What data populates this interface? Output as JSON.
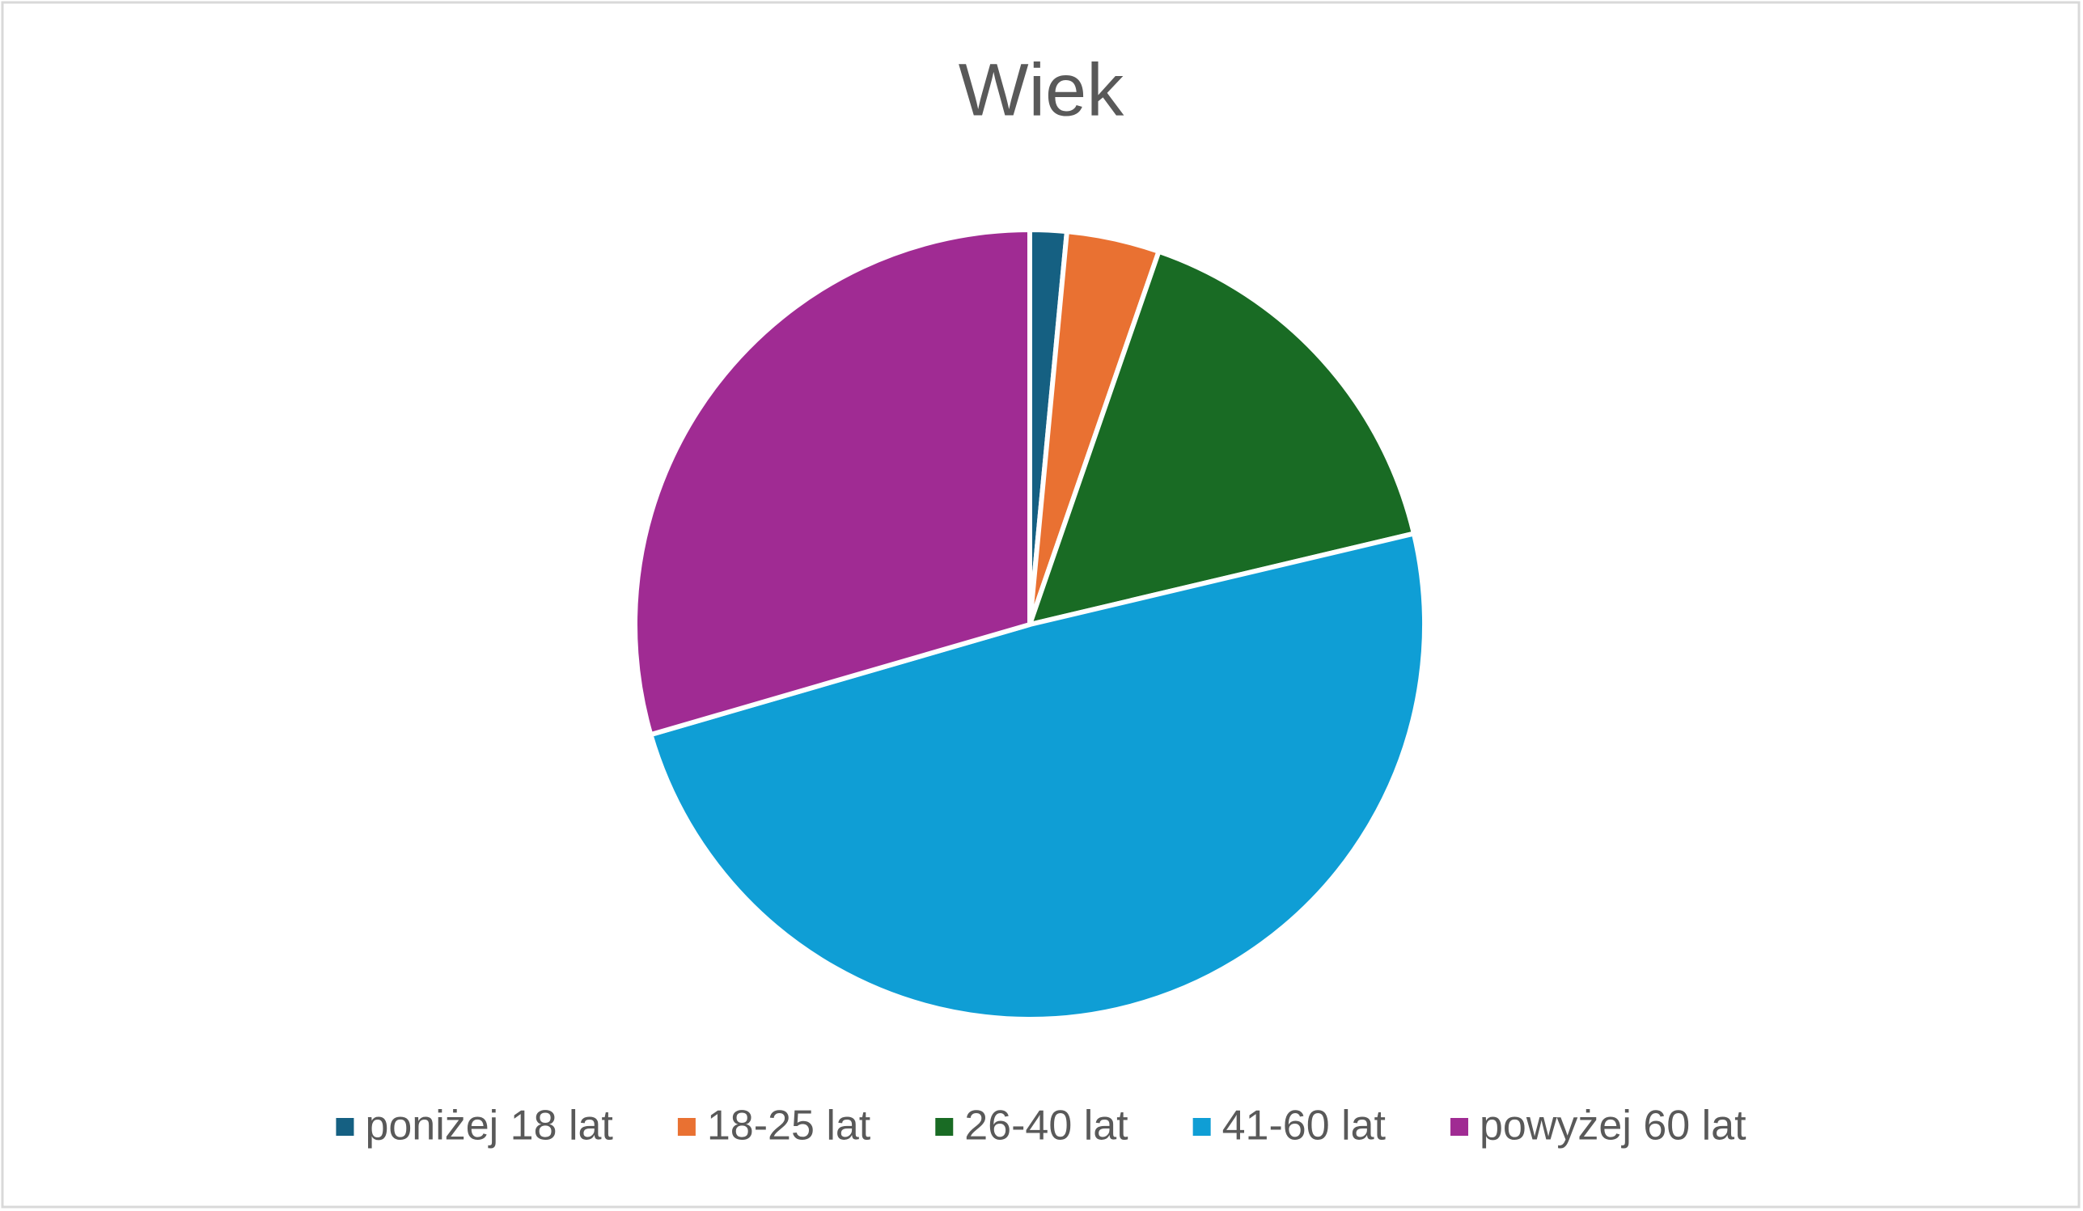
{
  "chart_data": {
    "type": "pie",
    "title": "Wiek",
    "categories": [
      "poniżej 18 lat",
      "18-25 lat",
      "26-40 lat",
      "41-60 lat",
      "powyżej 60 lat"
    ],
    "values": [
      1.5,
      3.8,
      16,
      49.2,
      29.5
    ],
    "colors": [
      "#156082",
      "#E97132",
      "#196B24",
      "#0F9ED5",
      "#A02B93"
    ],
    "legend": "bottom"
  }
}
